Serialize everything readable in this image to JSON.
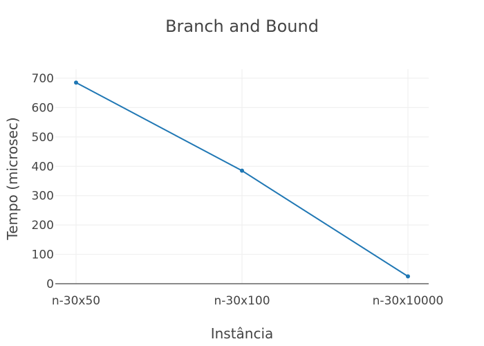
{
  "chart_data": {
    "type": "line",
    "title": "Branch and Bound",
    "xlabel": "Instância",
    "ylabel": "Tempo (microsec)",
    "categories": [
      "n-30x50",
      "n-30x100",
      "n-30x10000"
    ],
    "series": [
      {
        "values": [
          685,
          385,
          25
        ]
      }
    ],
    "yticks": [
      0,
      100,
      200,
      300,
      400,
      500,
      600,
      700
    ],
    "ylim": [
      0,
      700
    ],
    "grid": true,
    "legend": "none"
  },
  "colors": {
    "line": "#1f77b4",
    "grid": "#eeeeee",
    "axis": "#444444",
    "text": "#444444"
  }
}
